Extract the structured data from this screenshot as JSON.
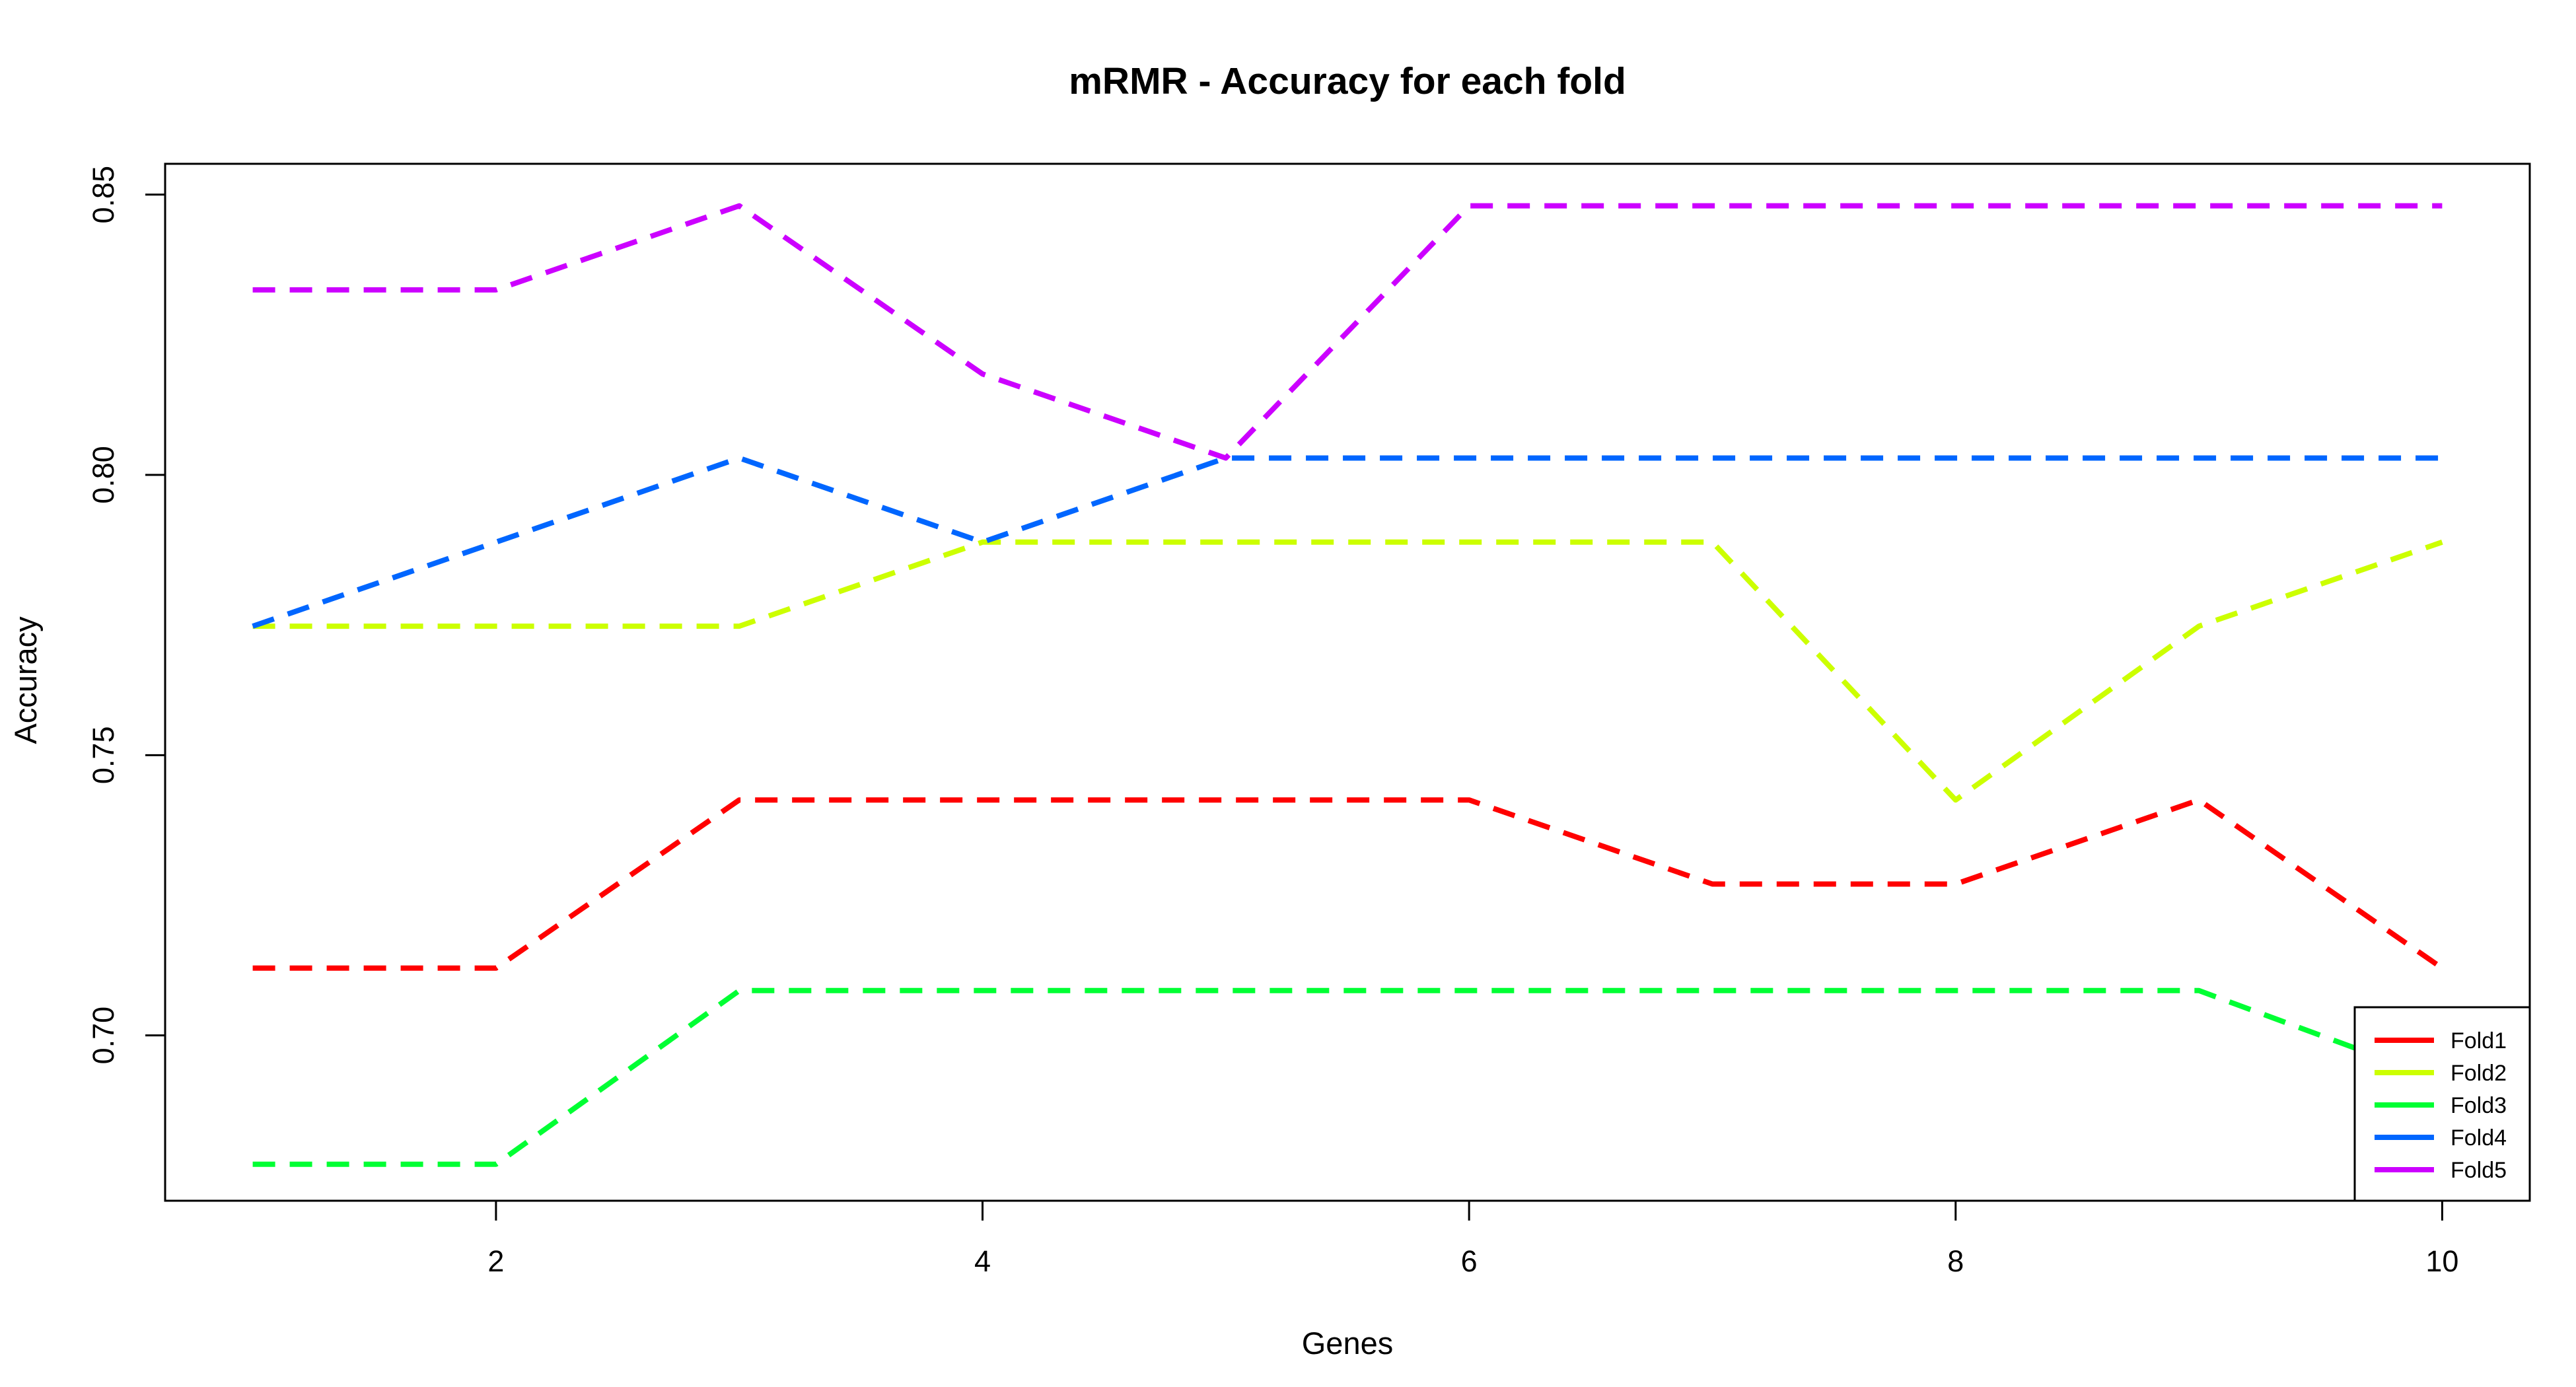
{
  "chart_data": {
    "type": "line",
    "title": "mRMR - Accuracy for each fold",
    "xlabel": "Genes",
    "ylabel": "Accuracy",
    "x": [
      1,
      2,
      3,
      4,
      5,
      6,
      7,
      8,
      9,
      10
    ],
    "xticks": [
      2,
      4,
      6,
      8,
      10
    ],
    "xtick_labels": [
      "2",
      "4",
      "6",
      "8",
      "10"
    ],
    "yticks": [
      0.7,
      0.75,
      0.8,
      0.85
    ],
    "ytick_labels": [
      "0.70",
      "0.75",
      "0.80",
      "0.85"
    ],
    "xlim": [
      0.64,
      10.36
    ],
    "ylim": [
      0.6705,
      0.8555
    ],
    "grid": false,
    "legend_position": "bottom-right",
    "line_style": "dashed",
    "series": [
      {
        "name": "Fold1",
        "color": "#ff0000",
        "values": [
          0.712,
          0.712,
          0.742,
          0.742,
          0.742,
          0.742,
          0.727,
          0.727,
          0.742,
          0.712
        ]
      },
      {
        "name": "Fold2",
        "color": "#ccff00",
        "values": [
          0.773,
          0.773,
          0.773,
          0.788,
          0.788,
          0.788,
          0.788,
          0.742,
          0.773,
          0.788
        ]
      },
      {
        "name": "Fold3",
        "color": "#00ff33",
        "values": [
          0.677,
          0.677,
          0.708,
          0.708,
          0.708,
          0.708,
          0.708,
          0.708,
          0.708,
          0.692
        ]
      },
      {
        "name": "Fold4",
        "color": "#0066ff",
        "values": [
          0.773,
          0.788,
          0.803,
          0.788,
          0.803,
          0.803,
          0.803,
          0.803,
          0.803,
          0.803
        ]
      },
      {
        "name": "Fold5",
        "color": "#cc00ff",
        "values": [
          0.833,
          0.833,
          0.848,
          0.818,
          0.803,
          0.848,
          0.848,
          0.848,
          0.848,
          0.848
        ]
      }
    ]
  }
}
